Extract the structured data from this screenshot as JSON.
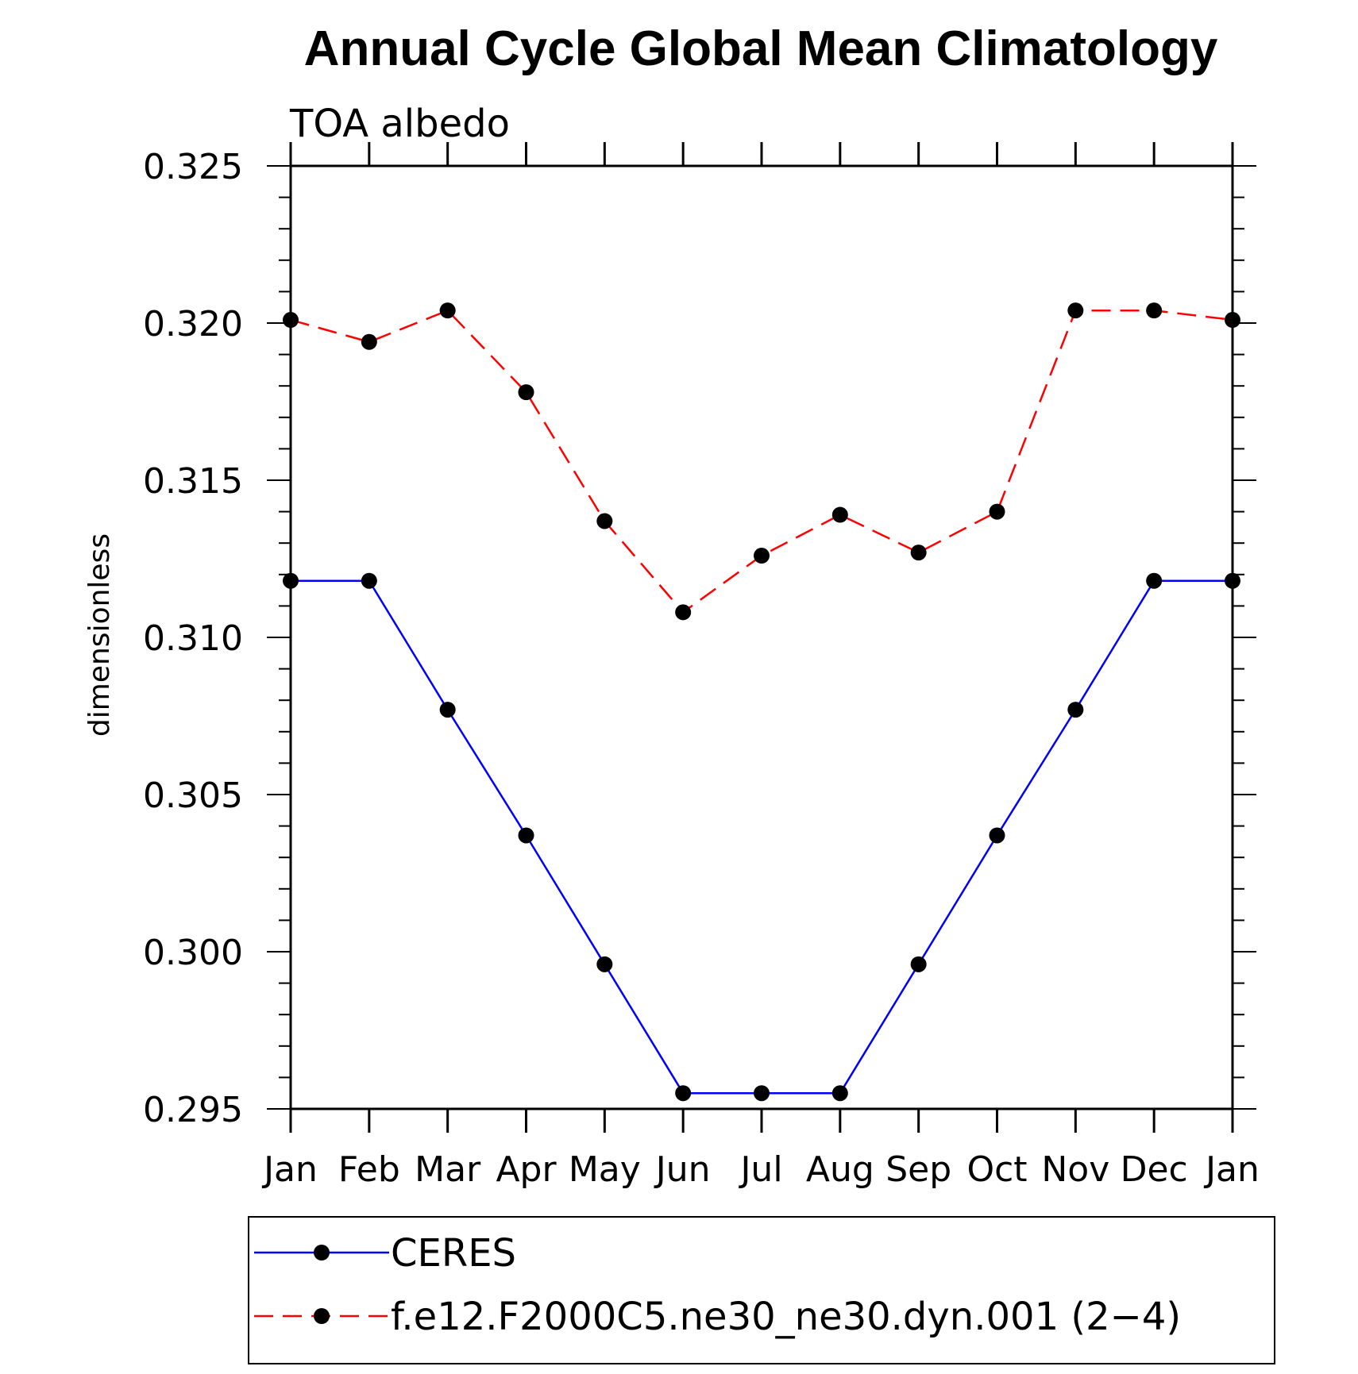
{
  "chart_data": {
    "type": "line",
    "title": "Annual Cycle Global Mean Climatology",
    "subtitle": "TOA albedo",
    "xlabel": "",
    "ylabel": "dimensionless",
    "categories": [
      "Jan",
      "Feb",
      "Mar",
      "Apr",
      "May",
      "Jun",
      "Jul",
      "Aug",
      "Sep",
      "Oct",
      "Nov",
      "Dec",
      "Jan"
    ],
    "ylim": [
      0.295,
      0.325
    ],
    "yticks": [
      "0.295",
      "0.300",
      "0.305",
      "0.310",
      "0.315",
      "0.320",
      "0.325"
    ],
    "series": [
      {
        "name": "CERES",
        "color": "#0000ff",
        "dash": "solid",
        "marker": "filled-circle",
        "values": [
          0.3118,
          0.3118,
          0.3077,
          0.3037,
          0.2996,
          0.2955,
          0.2955,
          0.2955,
          0.2996,
          0.3037,
          0.3077,
          0.3118,
          0.3118
        ]
      },
      {
        "name": "f.e12.F2000C5.ne30_ne30.dyn.001 (2−4)",
        "color": "#ff0000",
        "dash": "dashed",
        "marker": "filled-circle",
        "values": [
          0.3201,
          0.3194,
          0.3204,
          0.3178,
          0.3137,
          0.3108,
          0.3126,
          0.3139,
          0.3127,
          0.314,
          0.3204,
          0.3204,
          0.3201
        ]
      }
    ],
    "grid": false,
    "legend": "bottom"
  }
}
